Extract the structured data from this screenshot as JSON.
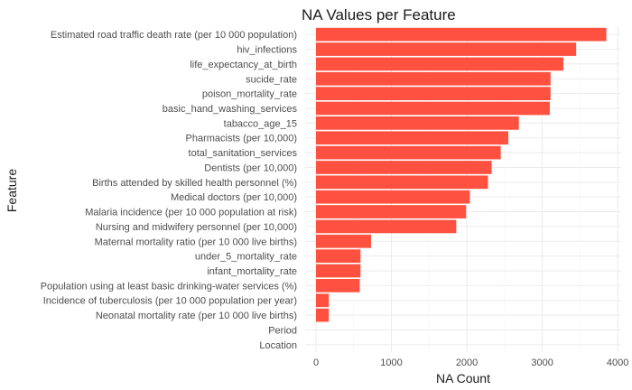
{
  "chart_data": {
    "type": "bar",
    "orientation": "horizontal",
    "title": "NA Values per Feature",
    "xlabel": "NA Count",
    "ylabel": "Feature",
    "xlim": [
      0,
      4000
    ],
    "xticks": [
      0,
      1000,
      2000,
      3000,
      4000
    ],
    "bar_color": "#FF5040",
    "grid": true,
    "legend": "none",
    "categories": [
      "Estimated road traffic death rate (per 10 000 population)",
      "hiv_infections",
      "life_expectancy_at_birth",
      "sucide_rate",
      "poison_mortality_rate",
      "basic_hand_washing_services",
      "tabacco_age_15",
      "Pharmacists  (per 10,000)",
      "total_sanitation_services",
      "Dentists (per 10,000)",
      "Births attended by skilled health personnel (%)",
      "Medical doctors (per 10,000)",
      "Malaria incidence (per 10 000 population at risk)",
      "Nursing and midwifery personnel (per 10,000)",
      "Maternal mortality ratio (per 10 000 live births)",
      "under_5_mortality_rate",
      "infant_mortality_rate",
      "Population using at least basic drinking-water services (%)",
      "Incidence of tuberculosis (per 10 000 population per year)",
      "Neonatal mortality rate (per 10 000 live births)",
      "Period",
      "Location"
    ],
    "values": [
      3850,
      3450,
      3280,
      3110,
      3110,
      3100,
      2690,
      2550,
      2450,
      2330,
      2280,
      2040,
      1990,
      1860,
      730,
      590,
      590,
      580,
      170,
      170,
      0,
      0
    ]
  }
}
